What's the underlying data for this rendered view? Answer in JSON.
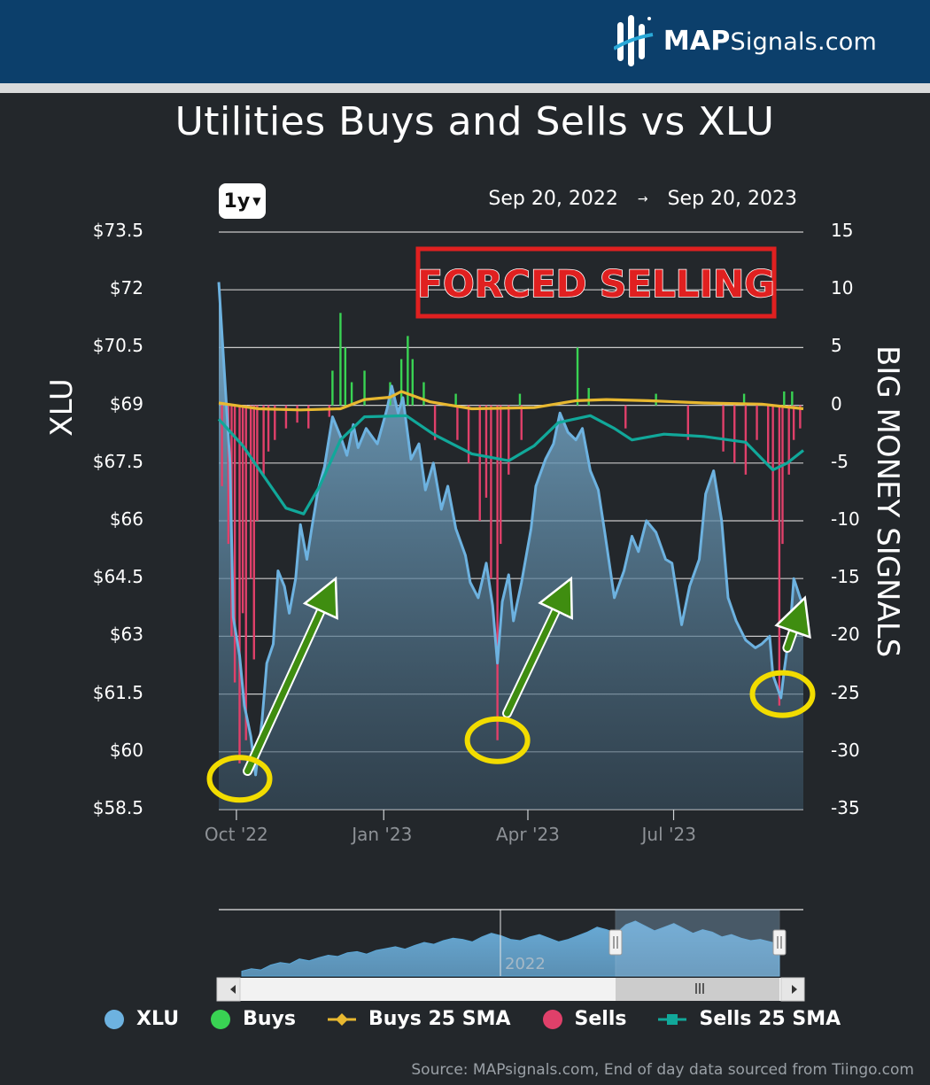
{
  "header": {
    "logo_bold": "MAP",
    "logo_rest": "Signals.com",
    "bar_color": "#0c3f6b"
  },
  "range_selector": {
    "label": "1y"
  },
  "date_range": {
    "from": "Sep 20, 2022",
    "arrow": "→",
    "to": "Sep 20, 2023"
  },
  "annotation": {
    "text": "FORCED SELLING",
    "border_color": "#e02020"
  },
  "legend": [
    {
      "label": "XLU",
      "color": "#6db2e0"
    },
    {
      "label": "Buys",
      "color": "#39d353"
    },
    {
      "label": "Buys 25 SMA",
      "color": "#e8b830"
    },
    {
      "label": "Sells",
      "color": "#e0406a"
    },
    {
      "label": "Sells 25 SMA",
      "color": "#11a89a"
    }
  ],
  "source": "Source: MAPsignals.com, End of day data sourced from Tiingo.com",
  "navigator": {
    "year_label": "2022"
  },
  "chart_data": {
    "type": "line",
    "title": "Utilities Buys and Sells vs XLU",
    "y_left": {
      "label": "XLU",
      "range": [
        58.5,
        73.5
      ],
      "ticks": [
        "$73.5",
        "$72",
        "$70.5",
        "$69",
        "$67.5",
        "$66",
        "$64.5",
        "$63",
        "$61.5",
        "$60",
        "$58.5"
      ]
    },
    "y_right": {
      "label": "BIG MONEY SIGNALS",
      "range": [
        -35,
        15
      ],
      "ticks": [
        "15",
        "10",
        "5",
        "0",
        "-5",
        "-10",
        "-15",
        "-20",
        "-25",
        "-30",
        "-35"
      ]
    },
    "x_axis": {
      "ticks": [
        "Oct '22",
        "Jan '23",
        "Apr '23",
        "Jul '23"
      ]
    },
    "series": [
      {
        "name": "XLU",
        "color": "#6db2e0",
        "points": [
          [
            "2022-09-20",
            72.2
          ],
          [
            "2022-09-23",
            70.2
          ],
          [
            "2022-09-27",
            67.5
          ],
          [
            "2022-09-29",
            63.5
          ],
          [
            "2022-10-03",
            62.5
          ],
          [
            "2022-10-06",
            61.2
          ],
          [
            "2022-10-10",
            60.4
          ],
          [
            "2022-10-13",
            59.4
          ],
          [
            "2022-10-17",
            60.8
          ],
          [
            "2022-10-20",
            62.3
          ],
          [
            "2022-10-24",
            62.8
          ],
          [
            "2022-10-27",
            64.7
          ],
          [
            "2022-10-31",
            64.3
          ],
          [
            "2022-11-03",
            63.6
          ],
          [
            "2022-11-07",
            64.5
          ],
          [
            "2022-11-10",
            65.9
          ],
          [
            "2022-11-14",
            65.0
          ],
          [
            "2022-11-17",
            65.8
          ],
          [
            "2022-11-21",
            66.8
          ],
          [
            "2022-11-25",
            67.4
          ],
          [
            "2022-11-30",
            68.7
          ],
          [
            "2022-12-05",
            68.2
          ],
          [
            "2022-12-09",
            67.7
          ],
          [
            "2022-12-13",
            68.5
          ],
          [
            "2022-12-16",
            67.9
          ],
          [
            "2022-12-21",
            68.4
          ],
          [
            "2022-12-28",
            68.0
          ],
          [
            "2023-01-03",
            68.9
          ],
          [
            "2023-01-06",
            69.5
          ],
          [
            "2023-01-10",
            68.8
          ],
          [
            "2023-01-13",
            69.2
          ],
          [
            "2023-01-18",
            67.6
          ],
          [
            "2023-01-23",
            68.0
          ],
          [
            "2023-01-27",
            66.8
          ],
          [
            "2023-02-01",
            67.5
          ],
          [
            "2023-02-06",
            66.3
          ],
          [
            "2023-02-10",
            66.9
          ],
          [
            "2023-02-15",
            65.8
          ],
          [
            "2023-02-21",
            65.1
          ],
          [
            "2023-02-24",
            64.4
          ],
          [
            "2023-03-01",
            64.0
          ],
          [
            "2023-03-06",
            64.9
          ],
          [
            "2023-03-10",
            63.8
          ],
          [
            "2023-03-13",
            62.3
          ],
          [
            "2023-03-16",
            63.9
          ],
          [
            "2023-03-20",
            64.6
          ],
          [
            "2023-03-23",
            63.4
          ],
          [
            "2023-03-28",
            64.4
          ],
          [
            "2023-04-03",
            65.8
          ],
          [
            "2023-04-06",
            66.9
          ],
          [
            "2023-04-12",
            67.6
          ],
          [
            "2023-04-17",
            68.0
          ],
          [
            "2023-04-21",
            68.8
          ],
          [
            "2023-04-26",
            68.3
          ],
          [
            "2023-05-01",
            68.1
          ],
          [
            "2023-05-05",
            68.4
          ],
          [
            "2023-05-10",
            67.3
          ],
          [
            "2023-05-15",
            66.8
          ],
          [
            "2023-05-19",
            65.7
          ],
          [
            "2023-05-25",
            64.0
          ],
          [
            "2023-05-31",
            64.7
          ],
          [
            "2023-06-05",
            65.6
          ],
          [
            "2023-06-09",
            65.2
          ],
          [
            "2023-06-14",
            66.0
          ],
          [
            "2023-06-20",
            65.7
          ],
          [
            "2023-06-26",
            65.0
          ],
          [
            "2023-06-30",
            64.9
          ],
          [
            "2023-07-06",
            63.3
          ],
          [
            "2023-07-11",
            64.3
          ],
          [
            "2023-07-17",
            65.0
          ],
          [
            "2023-07-21",
            66.7
          ],
          [
            "2023-07-26",
            67.3
          ],
          [
            "2023-07-31",
            66.0
          ],
          [
            "2023-08-04",
            64.0
          ],
          [
            "2023-08-09",
            63.4
          ],
          [
            "2023-08-15",
            62.9
          ],
          [
            "2023-08-21",
            62.7
          ],
          [
            "2023-08-25",
            62.8
          ],
          [
            "2023-08-30",
            63.0
          ],
          [
            "2023-09-01",
            62.0
          ],
          [
            "2023-09-06",
            61.4
          ],
          [
            "2023-09-08",
            62.1
          ],
          [
            "2023-09-12",
            63.3
          ],
          [
            "2023-09-14",
            64.5
          ],
          [
            "2023-09-18",
            64.0
          ],
          [
            "2023-09-20",
            63.8
          ]
        ]
      },
      {
        "name": "Buys 25 SMA",
        "color": "#e8b830",
        "points": [
          [
            "2022-09-20",
            0.2
          ],
          [
            "2022-10-15",
            -0.3
          ],
          [
            "2022-11-10",
            -0.4
          ],
          [
            "2022-12-05",
            -0.3
          ],
          [
            "2022-12-20",
            0.5
          ],
          [
            "2023-01-05",
            0.7
          ],
          [
            "2023-01-12",
            1.2
          ],
          [
            "2023-01-30",
            0.3
          ],
          [
            "2023-02-25",
            -0.3
          ],
          [
            "2023-04-05",
            -0.2
          ],
          [
            "2023-05-01",
            0.4
          ],
          [
            "2023-05-20",
            0.5
          ],
          [
            "2023-06-15",
            0.4
          ],
          [
            "2023-07-20",
            0.2
          ],
          [
            "2023-08-25",
            0.1
          ],
          [
            "2023-09-20",
            -0.3
          ]
        ]
      },
      {
        "name": "Sells 25 SMA",
        "color": "#11a89a",
        "points": [
          [
            "2022-09-20",
            -1.2
          ],
          [
            "2022-10-05",
            -3.5
          ],
          [
            "2022-10-20",
            -6.5
          ],
          [
            "2022-11-01",
            -8.9
          ],
          [
            "2022-11-12",
            -9.4
          ],
          [
            "2022-11-22",
            -7.0
          ],
          [
            "2022-12-05",
            -3.0
          ],
          [
            "2022-12-20",
            -1.0
          ],
          [
            "2023-01-15",
            -0.9
          ],
          [
            "2023-02-01",
            -2.5
          ],
          [
            "2023-02-25",
            -4.2
          ],
          [
            "2023-03-20",
            -4.8
          ],
          [
            "2023-04-05",
            -3.5
          ],
          [
            "2023-04-20",
            -1.5
          ],
          [
            "2023-05-10",
            -0.9
          ],
          [
            "2023-05-25",
            -2.0
          ],
          [
            "2023-06-05",
            -3.0
          ],
          [
            "2023-06-25",
            -2.5
          ],
          [
            "2023-07-20",
            -2.7
          ],
          [
            "2023-08-15",
            -3.2
          ],
          [
            "2023-09-01",
            -5.6
          ],
          [
            "2023-09-10",
            -5.0
          ],
          [
            "2023-09-20",
            -3.9
          ]
        ]
      }
    ],
    "bars": {
      "sells_color": "#e0406a",
      "buys_color": "#39d353",
      "sells": [
        [
          "2022-09-22",
          -7
        ],
        [
          "2022-09-26",
          -12
        ],
        [
          "2022-09-28",
          -20
        ],
        [
          "2022-09-30",
          -24
        ],
        [
          "2022-10-03",
          -31
        ],
        [
          "2022-10-05",
          -18
        ],
        [
          "2022-10-07",
          -29
        ],
        [
          "2022-10-10",
          -15
        ],
        [
          "2022-10-12",
          -22
        ],
        [
          "2022-10-14",
          -10
        ],
        [
          "2022-10-18",
          -6
        ],
        [
          "2022-10-21",
          -4
        ],
        [
          "2022-10-25",
          -3
        ],
        [
          "2022-11-01",
          -2
        ],
        [
          "2022-11-08",
          -1.5
        ],
        [
          "2022-11-15",
          -2
        ],
        [
          "2022-11-28",
          -1
        ],
        [
          "2023-02-02",
          -3
        ],
        [
          "2023-02-16",
          -3
        ],
        [
          "2023-02-23",
          -5
        ],
        [
          "2023-03-02",
          -10
        ],
        [
          "2023-03-06",
          -8
        ],
        [
          "2023-03-09",
          -15
        ],
        [
          "2023-03-13",
          -29
        ],
        [
          "2023-03-15",
          -12
        ],
        [
          "2023-03-20",
          -6
        ],
        [
          "2023-03-28",
          -3
        ],
        [
          "2023-06-01",
          -2
        ],
        [
          "2023-07-10",
          -3
        ],
        [
          "2023-08-01",
          -4
        ],
        [
          "2023-08-08",
          -5
        ],
        [
          "2023-08-15",
          -6
        ],
        [
          "2023-08-22",
          -3
        ],
        [
          "2023-08-29",
          -5
        ],
        [
          "2023-09-01",
          -10
        ],
        [
          "2023-09-05",
          -26
        ],
        [
          "2023-09-07",
          -12
        ],
        [
          "2023-09-11",
          -6
        ],
        [
          "2023-09-14",
          -3
        ],
        [
          "2023-09-18",
          -2
        ]
      ],
      "buys": [
        [
          "2022-11-30",
          3
        ],
        [
          "2022-12-05",
          8
        ],
        [
          "2022-12-08",
          5
        ],
        [
          "2022-12-12",
          2
        ],
        [
          "2022-12-20",
          3
        ],
        [
          "2023-01-05",
          2
        ],
        [
          "2023-01-12",
          4
        ],
        [
          "2023-01-16",
          6
        ],
        [
          "2023-01-19",
          4
        ],
        [
          "2023-01-26",
          2
        ],
        [
          "2023-02-15",
          1
        ],
        [
          "2023-03-27",
          1
        ],
        [
          "2023-05-02",
          5
        ],
        [
          "2023-05-09",
          1.5
        ],
        [
          "2023-06-20",
          1
        ],
        [
          "2023-08-14",
          1
        ],
        [
          "2023-09-08",
          1.2
        ],
        [
          "2023-09-13",
          1.2
        ]
      ]
    },
    "markers": [
      {
        "type": "circle",
        "date": "2022-10-03",
        "xlu": 59.3
      },
      {
        "type": "circle",
        "date": "2023-03-13",
        "xlu": 60.3
      },
      {
        "type": "circle",
        "date": "2023-09-07",
        "xlu": 61.5
      }
    ],
    "arrows": [
      {
        "from": [
          "2022-10-08",
          59.5
        ],
        "to": [
          "2022-12-02",
          64.5
        ]
      },
      {
        "from": [
          "2023-03-19",
          61.0
        ],
        "to": [
          "2023-04-28",
          64.5
        ]
      },
      {
        "from": [
          "2023-09-10",
          62.7
        ],
        "to": [
          "2023-09-21",
          64.0
        ]
      }
    ]
  }
}
